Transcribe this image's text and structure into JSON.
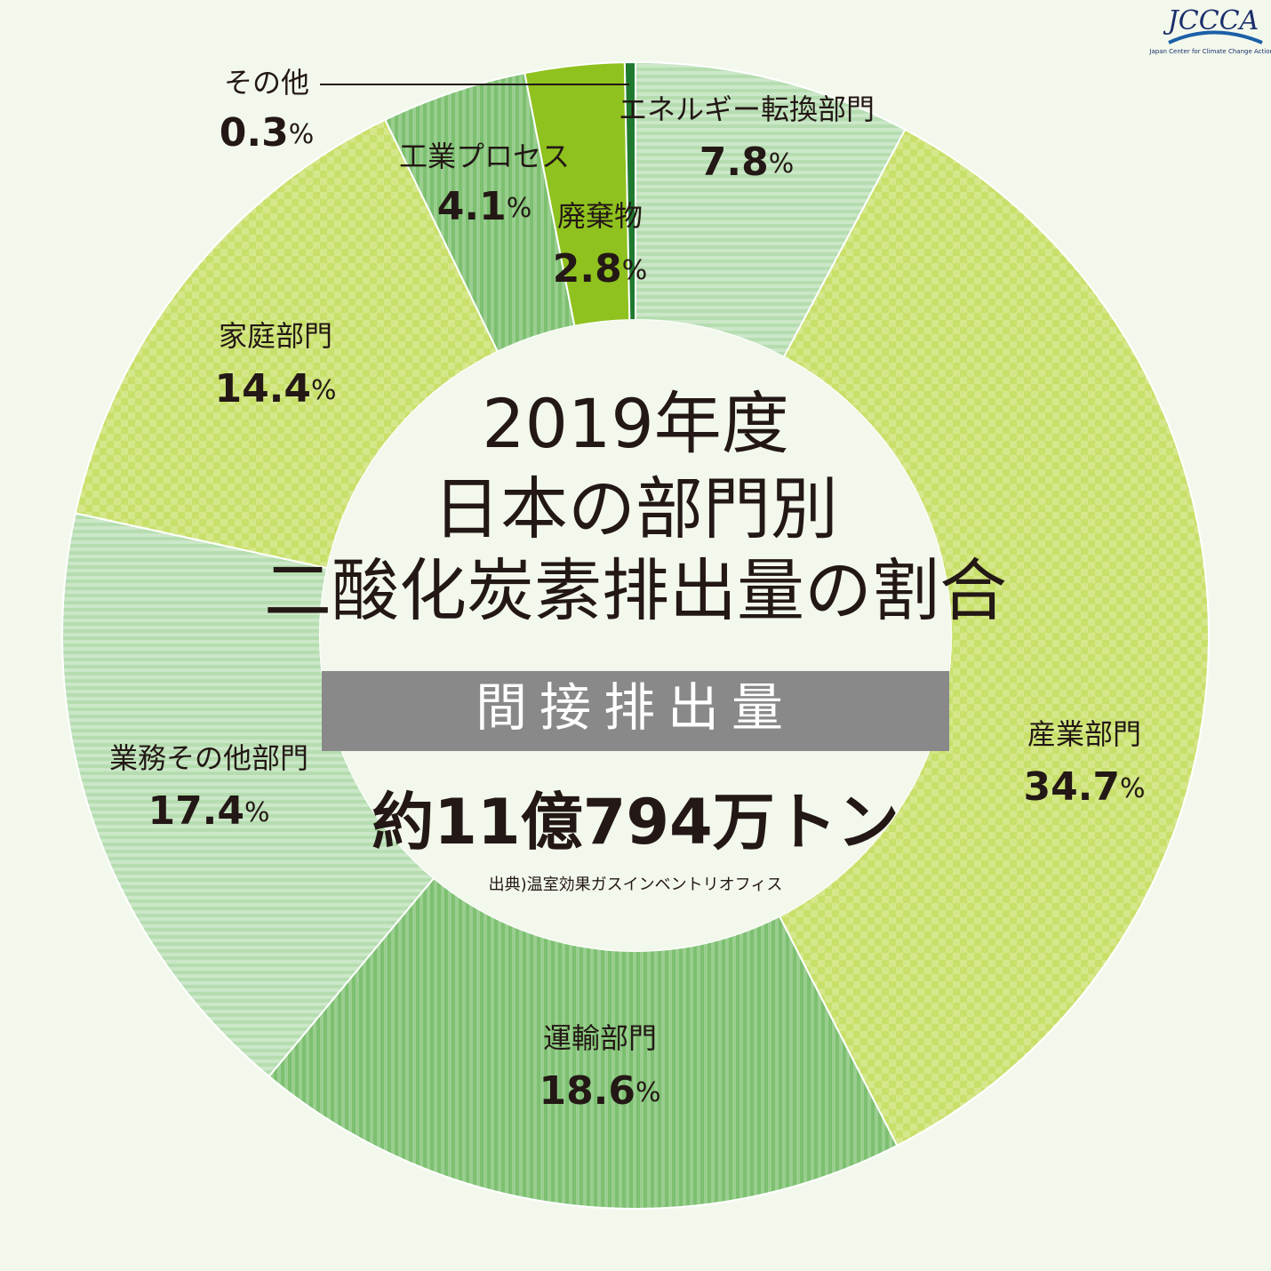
{
  "chart_data": {
    "type": "donut",
    "title": [
      "2019年度",
      "日本の部門別",
      "二酸化炭素排出量の割合"
    ],
    "subtitle": "間接排出量",
    "total": "約11億794万トン",
    "source": "出典)温室効果ガスインベントリオフィス",
    "logo": "JCCCA",
    "logo_caption": "Japan Center for Climate Change Actions",
    "categories": [
      "エネルギー転換部門",
      "産業部門",
      "運輸部門",
      "業務その他部門",
      "家庭部門",
      "工業プロセス",
      "廃棄物",
      "その他"
    ],
    "values": [
      7.8,
      34.7,
      18.6,
      17.4,
      14.4,
      4.1,
      2.8,
      0.3
    ],
    "value_labels": [
      "7.8%",
      "34.7%",
      "18.6%",
      "17.4%",
      "14.4%",
      "4.1%",
      "2.8%",
      "0.3%"
    ],
    "colors": [
      "#b5ddb0",
      "#c8e06a",
      "#7cc070",
      "#b5ddb0",
      "#c8e06a",
      "#7cc070",
      "#8fc21f",
      "#1f7a2f"
    ],
    "patterns": [
      "hstripe",
      "checker",
      "vstripe",
      "hstripe",
      "checker",
      "vstripe",
      "solid",
      "solid"
    ]
  }
}
